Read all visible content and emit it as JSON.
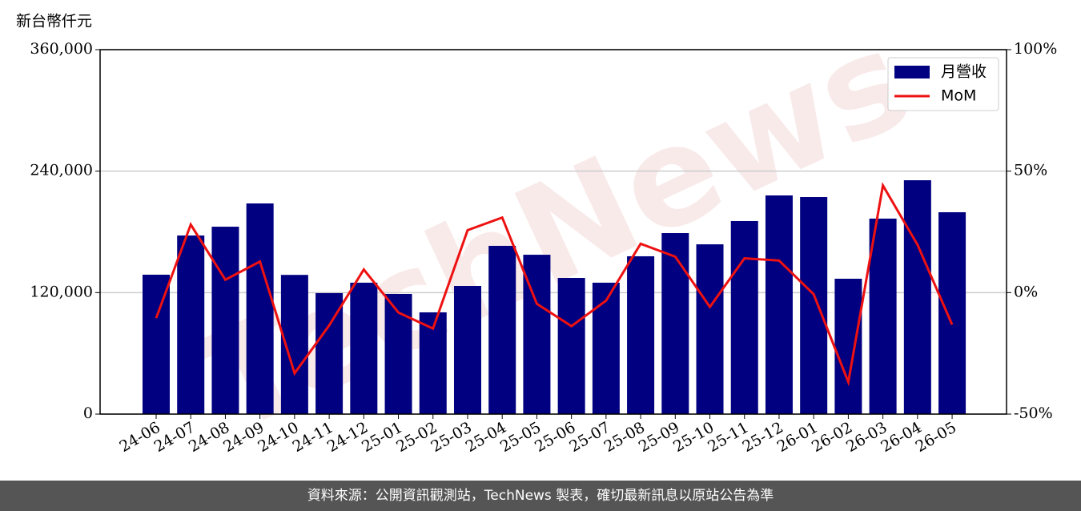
{
  "chart_data": {
    "type": "bar-line",
    "y_label": "新台幣仟元",
    "watermark": "TechNews",
    "categories": [
      "24-06",
      "24-07",
      "24-08",
      "24-09",
      "24-10",
      "24-11",
      "24-12",
      "25-01",
      "25-02",
      "25-03",
      "25-04",
      "25-05",
      "25-06",
      "25-07",
      "25-08",
      "25-09",
      "25-10",
      "25-11",
      "25-12",
      "26-01",
      "26-02",
      "26-03",
      "26-04",
      "26-05"
    ],
    "series": [
      {
        "name": "月營收",
        "type": "bar",
        "color": "#000080",
        "values": [
          137700,
          176400,
          185100,
          208100,
          137500,
          119500,
          129800,
          118700,
          100500,
          126600,
          166200,
          157400,
          134500,
          129800,
          155900,
          178800,
          167700,
          190700,
          216000,
          214400,
          133700,
          193100,
          231000,
          199400
        ]
      },
      {
        "name": "MoM",
        "type": "line",
        "axis": "y2",
        "color": "#ee1111",
        "values": [
          -10.5,
          28,
          5.3,
          12.8,
          -33.2,
          -13.5,
          9.5,
          -8.2,
          -14.8,
          25.7,
          30.9,
          -4.6,
          -13.8,
          -3.3,
          20.1,
          14.8,
          -5.9,
          14.1,
          13.2,
          -0.7,
          -36.8,
          44.1,
          19.7,
          -13.2
        ]
      }
    ],
    "ylim": [
      0,
      360000
    ],
    "yticks": [
      0,
      {
        "value": 120000,
        "label": "120,000"
      },
      {
        "value": 240000,
        "label": "240,000"
      },
      {
        "value": 360000,
        "label": "360,000"
      }
    ],
    "y2lim": [
      -50,
      100
    ],
    "y2ticks": [
      {
        "value": -50,
        "label": "-50%"
      },
      {
        "value": 0,
        "label": "0%"
      },
      {
        "value": 50,
        "label": "50%"
      },
      {
        "value": 100,
        "label": "100%"
      }
    ],
    "grid": true,
    "legend": "upper right",
    "source": "資料來源：公開資訊觀測站，TechNews 製表，確切最新訊息以原站公告為準"
  }
}
